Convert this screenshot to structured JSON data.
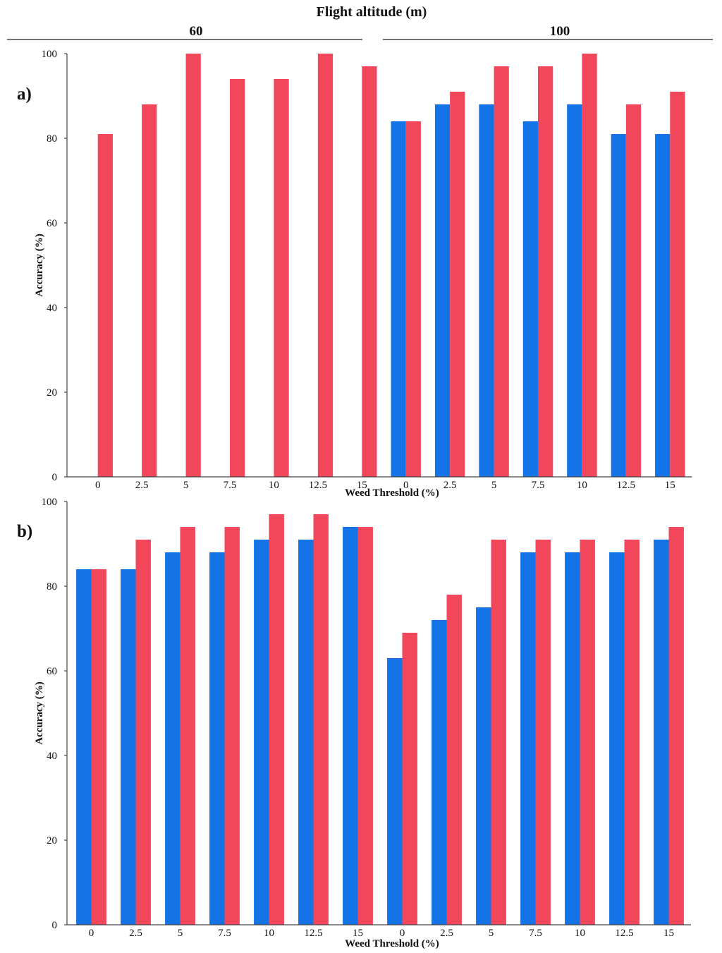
{
  "figure": {
    "title": "Flight altitude (m)",
    "groups": [
      "60",
      "100"
    ]
  },
  "colors": {
    "series1": "#1473e6",
    "series2": "#f2465a",
    "axis": "#444444"
  },
  "chart_data": [
    {
      "type": "bar",
      "panel_label": "a)",
      "title": "",
      "xlabel": "Weed Threshold (%)",
      "ylabel": "Accuracy (%)",
      "ylim": [
        0,
        100
      ],
      "yticks": [
        "0",
        "20",
        "40",
        "60",
        "80",
        "100"
      ],
      "grid": false,
      "groups": [
        "60",
        "100"
      ],
      "categories": [
        "0",
        "2.5",
        "5",
        "7.5",
        "10",
        "12.5",
        "15",
        "0",
        "2.5",
        "5",
        "7.5",
        "10",
        "12.5",
        "15"
      ],
      "series": [
        {
          "name": "series 1 (blue)",
          "values": [
            null,
            null,
            null,
            null,
            null,
            null,
            null,
            84,
            88,
            88,
            84,
            88,
            81,
            81
          ]
        },
        {
          "name": "series 2 (red)",
          "values": [
            81,
            88,
            100,
            94,
            94,
            100,
            97,
            84,
            91,
            97,
            97,
            100,
            88,
            91
          ]
        }
      ]
    },
    {
      "type": "bar",
      "panel_label": "b)",
      "title": "",
      "xlabel": "Weed Threshold (%)",
      "ylabel": "Accuracy (%)",
      "ylim": [
        0,
        100
      ],
      "yticks": [
        "0",
        "20",
        "40",
        "60",
        "80",
        "100"
      ],
      "grid": false,
      "groups": [
        "60",
        "100"
      ],
      "categories": [
        "0",
        "2.5",
        "5",
        "7.5",
        "10",
        "12.5",
        "15",
        "0",
        "2.5",
        "5",
        "7.5",
        "10",
        "12.5",
        "15"
      ],
      "series": [
        {
          "name": "series 1 (blue)",
          "values": [
            84,
            84,
            88,
            88,
            91,
            91,
            94,
            63,
            72,
            75,
            88,
            88,
            88,
            91
          ]
        },
        {
          "name": "series 2 (red)",
          "values": [
            84,
            91,
            94,
            94,
            97,
            97,
            94,
            69,
            78,
            91,
            91,
            91,
            91,
            94
          ]
        }
      ]
    }
  ]
}
